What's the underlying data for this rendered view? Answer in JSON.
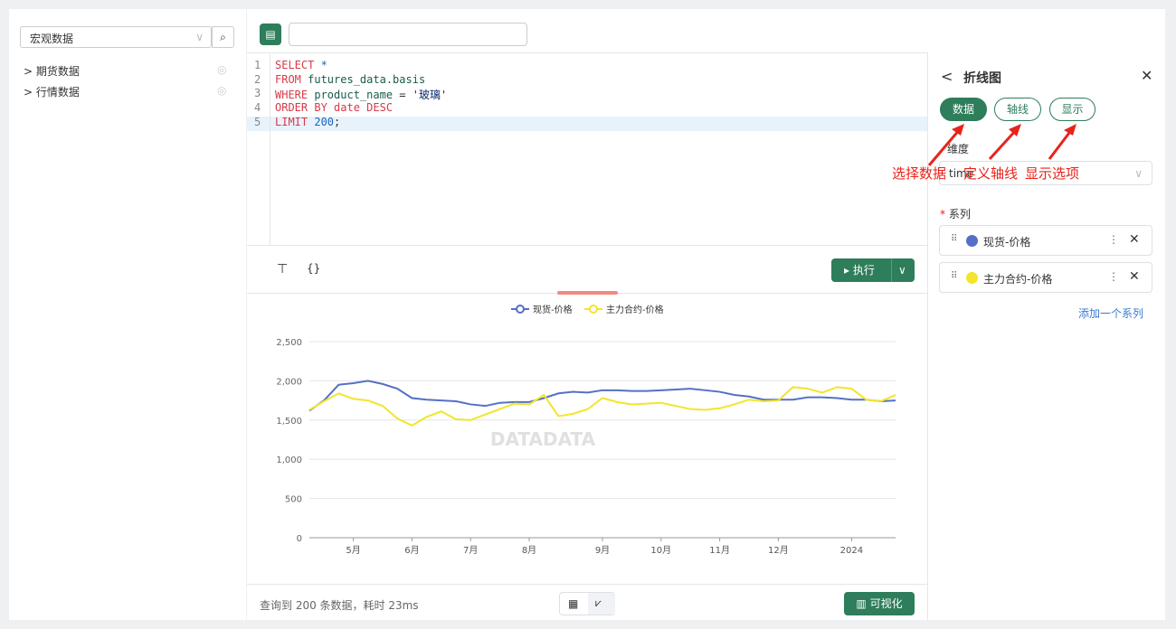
{
  "sidebar": {
    "select": "宏观数据",
    "items": [
      "期货数据",
      "行情数据"
    ]
  },
  "editor": {
    "lines": [
      {
        "number": "1",
        "tokens": [
          {
            "text": "SELECT",
            "color": "#d73a49"
          },
          {
            "text": " *",
            "color": "#1565c0"
          }
        ]
      },
      {
        "number": "2",
        "tokens": [
          {
            "text": "FROM",
            "color": "#d73a49"
          },
          {
            "text": " futures_data.basis",
            "color": "#1a5c4a"
          }
        ]
      },
      {
        "number": "3",
        "tokens": [
          {
            "text": "WHERE",
            "color": "#d73a49"
          },
          {
            "text": " product_name",
            "color": "#1a5c4a"
          },
          {
            "text": " = ",
            "color": "#333333"
          },
          {
            "text": "'玻璃'",
            "color": "#0b2a6b"
          }
        ]
      },
      {
        "number": "4",
        "tokens": [
          {
            "text": "ORDER BY date DESC",
            "color": "#d73a49"
          }
        ]
      },
      {
        "number": "5",
        "tokens": [
          {
            "text": "LIMIT",
            "color": "#d73a49"
          },
          {
            "text": " 200",
            "color": "#1565c0"
          },
          {
            "text": ";",
            "color": "#333333"
          }
        ]
      }
    ]
  },
  "toolbar": {
    "run": "执行"
  },
  "footer": {
    "status": "查询到 200 条数据，耗时 23ms",
    "visualize": "可视化"
  },
  "watermark": "DATADATA",
  "panel": {
    "title": "折线图",
    "tabs": [
      "数据",
      "轴线",
      "显示"
    ],
    "dimension_label": "维度",
    "dimension": "time",
    "series_label": "系列",
    "required": "*",
    "series": [
      {
        "name": "现货-价格",
        "color": "#5470c6"
      },
      {
        "name": "主力合约-价格",
        "color": "#f2e52b"
      }
    ],
    "add": "添加一个系列"
  },
  "annotations": [
    "选择数据",
    "定义轴线",
    "显示选项"
  ],
  "chart_data": {
    "type": "line",
    "categories": [
      null,
      null,
      null,
      "5月",
      null,
      null,
      null,
      "6月",
      null,
      null,
      null,
      "7月",
      null,
      null,
      null,
      "8月",
      null,
      null,
      null,
      null,
      "9月",
      null,
      null,
      null,
      "10月",
      null,
      null,
      null,
      "11月",
      null,
      null,
      null,
      "12月",
      null,
      null,
      null,
      null,
      "2024",
      null,
      null,
      null
    ],
    "series": [
      {
        "name": "现货-价格",
        "color": "#5470c6",
        "values": [
          1620,
          1750,
          1950,
          1970,
          2000,
          1960,
          1900,
          1780,
          1760,
          1750,
          1740,
          1700,
          1680,
          1720,
          1730,
          1730,
          1780,
          1840,
          1860,
          1850,
          1880,
          1880,
          1870,
          1870,
          1880,
          1890,
          1900,
          1880,
          1860,
          1820,
          1800,
          1760,
          1760,
          1760,
          1790,
          1790,
          1780,
          1760,
          1760,
          1740,
          1750
        ]
      },
      {
        "name": "主力合约-价格",
        "color": "#f2e52b",
        "values": [
          1630,
          1740,
          1840,
          1770,
          1750,
          1680,
          1520,
          1430,
          1540,
          1610,
          1510,
          1500,
          1570,
          1640,
          1710,
          1700,
          1820,
          1550,
          1580,
          1640,
          1780,
          1730,
          1700,
          1710,
          1720,
          1680,
          1640,
          1630,
          1650,
          1700,
          1760,
          1740,
          1750,
          1920,
          1900,
          1850,
          1920,
          1900,
          1760,
          1740,
          1820
        ]
      }
    ],
    "ylim": [
      0,
      2500
    ],
    "yticks": [
      0,
      500,
      {
        "value": 1000,
        "label": "1,000"
      },
      {
        "value": 1500,
        "label": "1,500"
      },
      {
        "value": 2000,
        "label": "2,000"
      },
      {
        "value": 2500,
        "label": "2,500"
      }
    ],
    "grid": true
  }
}
